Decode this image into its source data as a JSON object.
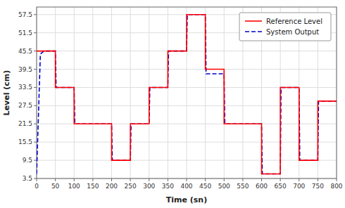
{
  "chart_data": {
    "type": "line",
    "xlabel": "Time (sn)",
    "ylabel": "Level (cm)",
    "xlim": [
      0,
      800
    ],
    "ylim": [
      3.5,
      60
    ],
    "xticks": [
      0,
      50,
      100,
      150,
      200,
      250,
      300,
      350,
      400,
      450,
      500,
      550,
      600,
      650,
      700,
      750,
      800
    ],
    "yticks": [
      3.5,
      9.5,
      15.5,
      21.5,
      27.5,
      33.5,
      39.5,
      45.5,
      51.5,
      57.5
    ],
    "grid": true,
    "legend": "upper right",
    "series": [
      {
        "name": "Reference Level",
        "color": "#ff0000",
        "line_style": "solid",
        "x": [
          0,
          50,
          50,
          100,
          100,
          200,
          200,
          250,
          250,
          300,
          300,
          350,
          350,
          400,
          400,
          450,
          450,
          500,
          500,
          600,
          600,
          650,
          650,
          700,
          700,
          750,
          750,
          800
        ],
        "values": [
          45.5,
          45.5,
          33.5,
          33.5,
          21.5,
          21.5,
          9.5,
          9.5,
          21.5,
          21.5,
          33.5,
          33.5,
          45.5,
          45.5,
          57.5,
          57.5,
          39.5,
          39.5,
          21.5,
          21.5,
          5.0,
          5.0,
          33.5,
          33.5,
          9.5,
          9.5,
          29.0,
          29.0
        ]
      },
      {
        "name": "System Output",
        "color": "#0000cc",
        "line_style": "dashed",
        "x": [
          0,
          10,
          20,
          50,
          52,
          100,
          102,
          200,
          202,
          250,
          252,
          300,
          302,
          350,
          352,
          400,
          402,
          450,
          452,
          500,
          502,
          600,
          602,
          650,
          652,
          700,
          702,
          750,
          752,
          800
        ],
        "values": [
          5.0,
          44.5,
          45.5,
          45.5,
          33.5,
          33.5,
          21.5,
          21.5,
          9.5,
          9.5,
          21.5,
          21.5,
          33.5,
          33.5,
          45.5,
          45.5,
          57.5,
          57.5,
          38.0,
          38.0,
          21.5,
          21.5,
          5.0,
          5.0,
          33.5,
          33.5,
          9.5,
          9.5,
          29.0,
          29.0
        ]
      }
    ]
  }
}
